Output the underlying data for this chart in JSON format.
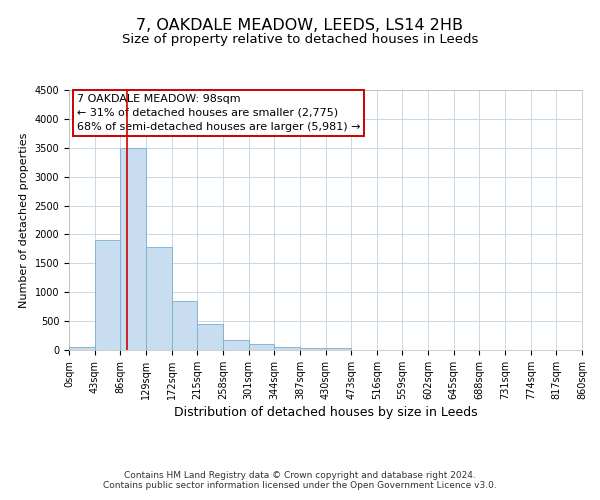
{
  "title1": "7, OAKDALE MEADOW, LEEDS, LS14 2HB",
  "title2": "Size of property relative to detached houses in Leeds",
  "xlabel": "Distribution of detached houses by size in Leeds",
  "ylabel": "Number of detached properties",
  "background_color": "#ffffff",
  "grid_color": "#c8d8e8",
  "bar_facecolor": "#c8ddf0",
  "bar_edgecolor": "#7aaed0",
  "bin_edges": [
    0,
    43,
    86,
    129,
    172,
    215,
    258,
    301,
    344,
    387,
    430,
    473,
    516,
    559,
    602,
    645,
    688,
    731,
    774,
    817,
    860
  ],
  "bin_labels": [
    "0sqm",
    "43sqm",
    "86sqm",
    "129sqm",
    "172sqm",
    "215sqm",
    "258sqm",
    "301sqm",
    "344sqm",
    "387sqm",
    "430sqm",
    "473sqm",
    "516sqm",
    "559sqm",
    "602sqm",
    "645sqm",
    "688sqm",
    "731sqm",
    "774sqm",
    "817sqm",
    "860sqm"
  ],
  "bar_heights": [
    50,
    1900,
    3500,
    1775,
    850,
    450,
    175,
    100,
    60,
    40,
    30,
    0,
    0,
    0,
    0,
    0,
    0,
    0,
    0,
    0
  ],
  "ylim": [
    0,
    4500
  ],
  "yticks": [
    0,
    500,
    1000,
    1500,
    2000,
    2500,
    3000,
    3500,
    4000,
    4500
  ],
  "vline_x": 98,
  "vline_color": "#cc0000",
  "annotation_title": "7 OAKDALE MEADOW: 98sqm",
  "annotation_line1": "← 31% of detached houses are smaller (2,775)",
  "annotation_line2": "68% of semi-detached houses are larger (5,981) →",
  "annotation_box_edgecolor": "#cc0000",
  "footer1": "Contains HM Land Registry data © Crown copyright and database right 2024.",
  "footer2": "Contains public sector information licensed under the Open Government Licence v3.0.",
  "title1_fontsize": 11.5,
  "title2_fontsize": 9.5,
  "xlabel_fontsize": 9,
  "ylabel_fontsize": 8,
  "tick_fontsize": 7,
  "annotation_fontsize": 8,
  "footer_fontsize": 6.5
}
